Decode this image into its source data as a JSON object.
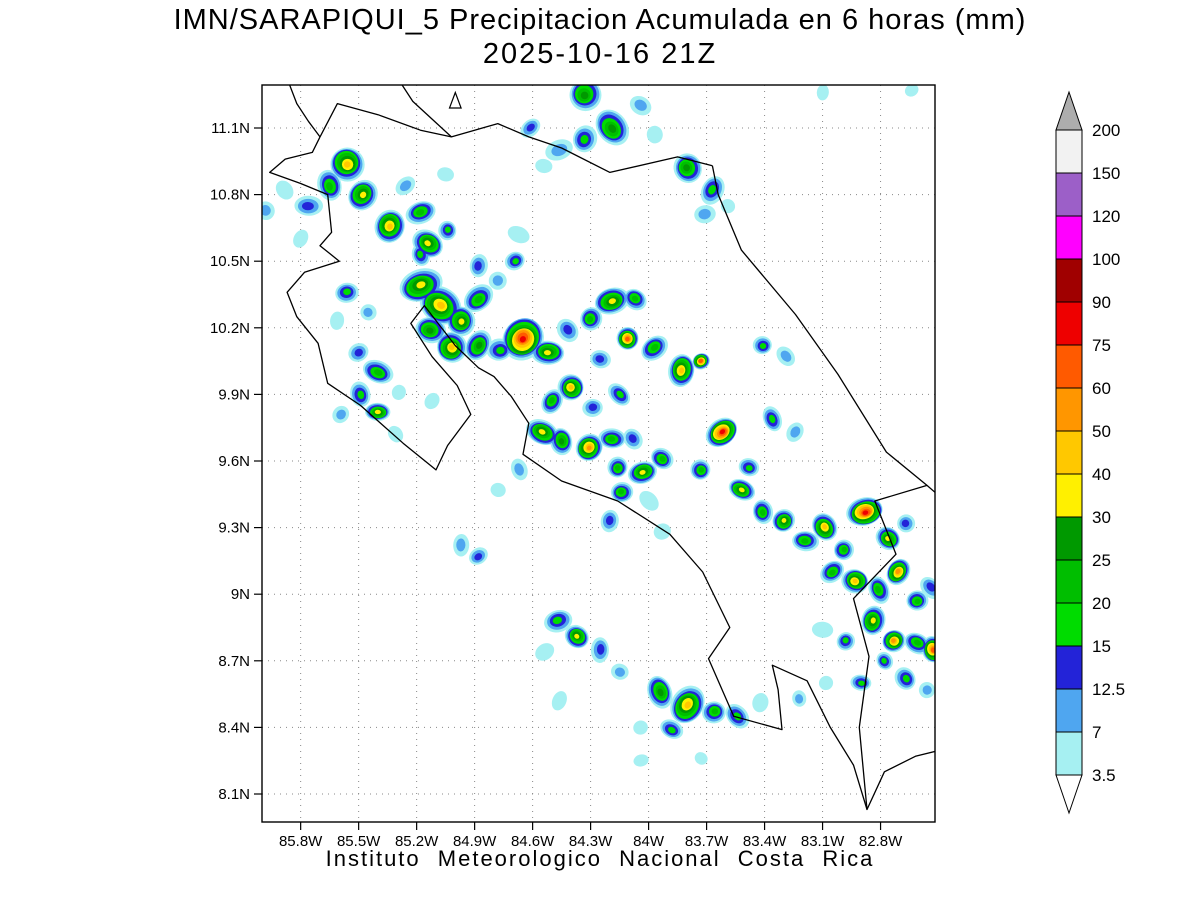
{
  "title": {
    "line1": "IMN/SARAPIQUI_5 Precipitacion Acumulada en 6 horas (mm)",
    "line2": "2025-10-16 21Z"
  },
  "caption": "Instituto Meteorologico Nacional Costa Rica",
  "axes": {
    "lat_ticks": [
      {
        "v": 11.1,
        "label": "11.1N"
      },
      {
        "v": 10.8,
        "label": "10.8N"
      },
      {
        "v": 10.5,
        "label": "10.5N"
      },
      {
        "v": 10.2,
        "label": "10.2N"
      },
      {
        "v": 9.9,
        "label": "9.9N"
      },
      {
        "v": 9.6,
        "label": "9.6N"
      },
      {
        "v": 9.3,
        "label": "9.3N"
      },
      {
        "v": 9.0,
        "label": "9N"
      },
      {
        "v": 8.7,
        "label": "8.7N"
      },
      {
        "v": 8.4,
        "label": "8.4N"
      },
      {
        "v": 8.1,
        "label": "8.1N"
      }
    ],
    "lon_ticks": [
      {
        "v": 85.8,
        "label": "85.8W"
      },
      {
        "v": 85.5,
        "label": "85.5W"
      },
      {
        "v": 85.2,
        "label": "85.2W"
      },
      {
        "v": 84.9,
        "label": "84.9W"
      },
      {
        "v": 84.6,
        "label": "84.6W"
      },
      {
        "v": 84.3,
        "label": "84.3W"
      },
      {
        "v": 84.0,
        "label": "84W"
      },
      {
        "v": 83.7,
        "label": "83.7W"
      },
      {
        "v": 83.4,
        "label": "83.4W"
      },
      {
        "v": 83.1,
        "label": "83.1W"
      },
      {
        "v": 82.8,
        "label": "82.8W"
      }
    ]
  },
  "colorbar": {
    "boundaries": [
      "3.5",
      "7",
      "12.5",
      "15",
      "20",
      "25",
      "30",
      "40",
      "50",
      "60",
      "75",
      "90",
      "100",
      "120",
      "150",
      "200"
    ],
    "boundary_values": [
      3.5,
      7,
      12.5,
      15,
      20,
      25,
      30,
      40,
      50,
      60,
      75,
      90,
      100,
      120,
      150,
      200
    ],
    "segment_colors": [
      "#A6F0F2",
      "#4FA6F0",
      "#2323D8",
      "#00DC00",
      "#00BE00",
      "#009900",
      "#FFF000",
      "#FFC800",
      "#FF9600",
      "#FF5A00",
      "#EE0000",
      "#A00000",
      "#FF00FF",
      "#9C5FC8",
      "#F2F2F2"
    ],
    "arrow_top_color": "#ADADAD",
    "arrow_bottom_color": "#FFFFFF"
  },
  "map": {
    "coastlines": [
      [
        [
          85.7,
          11.06
        ],
        [
          85.74,
          10.99
        ],
        [
          85.88,
          10.96
        ],
        [
          85.96,
          10.9
        ],
        [
          85.8,
          10.85
        ],
        [
          85.66,
          10.8
        ],
        [
          85.64,
          10.63
        ],
        [
          85.7,
          10.57
        ],
        [
          85.6,
          10.5
        ],
        [
          85.78,
          10.45
        ],
        [
          85.87,
          10.36
        ],
        [
          85.82,
          10.25
        ],
        [
          85.71,
          10.13
        ],
        [
          85.66,
          9.95
        ],
        [
          85.49,
          9.85
        ],
        [
          85.27,
          9.68
        ],
        [
          85.1,
          9.56
        ],
        [
          85.04,
          9.67
        ],
        [
          84.92,
          9.81
        ],
        [
          84.99,
          9.94
        ],
        [
          85.12,
          10.07
        ],
        [
          85.23,
          10.22
        ],
        [
          85.16,
          10.3
        ],
        [
          85.0,
          10.12
        ],
        [
          84.88,
          10.02
        ],
        [
          84.8,
          9.98
        ],
        [
          84.71,
          9.89
        ],
        [
          84.62,
          9.77
        ],
        [
          84.65,
          9.63
        ],
        [
          84.45,
          9.51
        ],
        [
          84.16,
          9.42
        ],
        [
          83.89,
          9.27
        ],
        [
          83.72,
          9.1
        ],
        [
          83.58,
          8.85
        ],
        [
          83.69,
          8.71
        ],
        [
          83.56,
          8.45
        ],
        [
          83.31,
          8.39
        ],
        [
          83.33,
          8.57
        ],
        [
          83.36,
          8.68
        ],
        [
          83.18,
          8.61
        ],
        [
          83.06,
          8.4
        ],
        [
          82.94,
          8.23
        ],
        [
          82.87,
          8.03
        ],
        [
          82.78,
          8.2
        ],
        [
          82.62,
          8.27
        ],
        [
          82.48,
          8.3
        ]
      ],
      [
        [
          82.87,
          8.03
        ],
        [
          82.91,
          8.4
        ],
        [
          82.86,
          8.72
        ],
        [
          82.94,
          8.98
        ],
        [
          82.72,
          9.18
        ],
        [
          82.83,
          9.42
        ],
        [
          82.56,
          9.49
        ]
      ],
      [
        [
          82.48,
          9.43
        ],
        [
          82.56,
          9.49
        ],
        [
          82.77,
          9.64
        ],
        [
          83.02,
          9.99
        ],
        [
          83.24,
          10.26
        ],
        [
          83.52,
          10.55
        ],
        [
          83.64,
          10.8
        ],
        [
          83.67,
          10.93
        ]
      ],
      [
        [
          85.7,
          11.06
        ],
        [
          85.64,
          11.16
        ],
        [
          85.61,
          11.21
        ],
        [
          85.4,
          11.16
        ],
        [
          85.18,
          11.09
        ],
        [
          85.02,
          11.06
        ],
        [
          84.9,
          11.09
        ],
        [
          84.78,
          11.12
        ],
        [
          84.62,
          11.06
        ],
        [
          84.45,
          11.01
        ],
        [
          84.2,
          10.9
        ],
        [
          83.85,
          10.97
        ],
        [
          83.67,
          10.93
        ]
      ],
      [
        [
          85.02,
          11.06
        ],
        [
          85.12,
          11.14
        ],
        [
          85.22,
          11.22
        ],
        [
          85.28,
          11.3
        ]
      ],
      [
        [
          85.7,
          11.06
        ],
        [
          85.76,
          11.13
        ],
        [
          85.82,
          11.21
        ],
        [
          85.86,
          11.3
        ]
      ]
    ],
    "island_triangle": [
      [
        85.03,
        11.19
      ],
      [
        84.97,
        11.19
      ],
      [
        85.0,
        11.26
      ]
    ]
  },
  "chart_data": {
    "type": "heatmap",
    "title": "IMN/SARAPIQUI_5 Precipitacion Acumulada en 6 horas (mm)",
    "subtitle": "2025-10-16 21Z",
    "units": "mm",
    "lon_range_w": [
      86.0,
      82.52
    ],
    "lat_range_n": [
      7.97,
      11.29
    ],
    "legend_levels_mm": [
      3.5,
      7,
      12.5,
      15,
      20,
      25,
      30,
      40,
      50,
      60,
      75,
      90,
      100,
      120,
      150,
      200
    ],
    "cell_fields": [
      "lon_w",
      "lat_n",
      "precip_mm",
      "radius_px"
    ],
    "cells": [
      [
        84.33,
        11.25,
        27,
        16
      ],
      [
        84.19,
        11.1,
        27,
        15
      ],
      [
        84.33,
        11.05,
        17,
        12
      ],
      [
        84.46,
        11.0,
        10,
        10
      ],
      [
        84.04,
        11.2,
        10,
        9
      ],
      [
        83.97,
        11.07,
        5,
        8
      ],
      [
        84.61,
        11.1,
        13.5,
        8
      ],
      [
        84.54,
        10.93,
        5,
        7
      ],
      [
        83.8,
        10.92,
        27,
        14
      ],
      [
        83.67,
        10.82,
        17,
        11
      ],
      [
        83.71,
        10.71,
        10,
        9
      ],
      [
        83.59,
        10.75,
        5,
        7
      ],
      [
        83.1,
        11.26,
        5,
        6
      ],
      [
        82.64,
        11.27,
        5,
        6
      ],
      [
        85.56,
        10.94,
        45,
        17
      ],
      [
        85.65,
        10.84,
        22,
        12
      ],
      [
        85.48,
        10.8,
        35,
        14
      ],
      [
        85.76,
        10.75,
        13.5,
        10
      ],
      [
        85.88,
        10.82,
        5,
        8
      ],
      [
        85.34,
        10.66,
        45,
        15
      ],
      [
        85.18,
        10.72,
        22,
        11
      ],
      [
        85.14,
        10.58,
        35,
        13
      ],
      [
        85.04,
        10.64,
        17,
        9
      ],
      [
        85.26,
        10.84,
        10,
        8
      ],
      [
        85.05,
        10.89,
        5,
        7
      ],
      [
        85.98,
        10.73,
        10,
        9
      ],
      [
        85.8,
        10.6,
        5,
        7
      ],
      [
        85.56,
        10.36,
        17,
        10
      ],
      [
        85.45,
        10.27,
        10,
        8
      ],
      [
        85.61,
        10.23,
        5,
        7
      ],
      [
        85.5,
        10.09,
        13.5,
        9
      ],
      [
        85.4,
        10.0,
        22,
        11
      ],
      [
        85.49,
        9.9,
        17,
        10
      ],
      [
        85.59,
        9.81,
        10,
        8
      ],
      [
        85.4,
        9.82,
        35,
        9
      ],
      [
        85.31,
        9.72,
        5,
        7
      ],
      [
        85.29,
        9.91,
        5,
        7
      ],
      [
        85.18,
        10.39,
        35,
        16
      ],
      [
        85.08,
        10.3,
        45,
        18
      ],
      [
        84.97,
        10.23,
        35,
        14
      ],
      [
        84.88,
        10.33,
        22,
        12
      ],
      [
        85.13,
        10.19,
        27,
        13
      ],
      [
        85.02,
        10.11,
        45,
        15
      ],
      [
        84.88,
        10.12,
        27,
        12
      ],
      [
        84.77,
        10.1,
        17,
        11
      ],
      [
        84.78,
        10.41,
        10,
        9
      ],
      [
        84.88,
        10.48,
        13.5,
        9
      ],
      [
        84.69,
        10.5,
        17,
        9
      ],
      [
        84.67,
        10.62,
        5,
        8
      ],
      [
        85.18,
        10.53,
        17,
        9
      ],
      [
        84.65,
        10.15,
        80,
        20
      ],
      [
        84.52,
        10.09,
        35,
        12
      ],
      [
        84.42,
        10.19,
        13.5,
        10
      ],
      [
        84.3,
        10.24,
        22,
        11
      ],
      [
        84.19,
        10.32,
        35,
        13
      ],
      [
        84.07,
        10.33,
        22,
        10
      ],
      [
        84.11,
        10.15,
        65,
        11
      ],
      [
        83.97,
        10.11,
        22,
        11
      ],
      [
        84.25,
        10.06,
        13.5,
        9
      ],
      [
        84.4,
        9.93,
        45,
        13
      ],
      [
        84.5,
        9.87,
        22,
        10
      ],
      [
        84.29,
        9.84,
        13.5,
        9
      ],
      [
        84.15,
        9.9,
        17,
        9
      ],
      [
        83.83,
        10.01,
        45,
        13
      ],
      [
        83.73,
        10.05,
        65,
        8
      ],
      [
        84.55,
        9.73,
        35,
        12
      ],
      [
        84.45,
        9.69,
        27,
        11
      ],
      [
        84.31,
        9.66,
        55,
        13
      ],
      [
        84.19,
        9.7,
        22,
        10
      ],
      [
        84.08,
        9.7,
        13.5,
        9
      ],
      [
        84.16,
        9.57,
        22,
        10
      ],
      [
        84.03,
        9.55,
        35,
        11
      ],
      [
        83.93,
        9.61,
        22,
        10
      ],
      [
        83.73,
        9.56,
        22,
        10
      ],
      [
        83.62,
        9.73,
        80,
        13
      ],
      [
        83.48,
        9.57,
        17,
        9
      ],
      [
        83.36,
        9.79,
        17,
        9
      ],
      [
        83.24,
        9.73,
        10,
        8
      ],
      [
        84.14,
        9.46,
        22,
        10
      ],
      [
        84.0,
        9.42,
        5,
        8
      ],
      [
        84.2,
        9.33,
        13.5,
        9
      ],
      [
        83.93,
        9.28,
        5,
        8
      ],
      [
        83.52,
        9.47,
        35,
        10
      ],
      [
        83.41,
        9.37,
        22,
        10
      ],
      [
        83.3,
        9.33,
        35,
        11
      ],
      [
        83.19,
        9.24,
        22,
        10
      ],
      [
        83.09,
        9.3,
        45,
        12
      ],
      [
        82.99,
        9.2,
        22,
        10
      ],
      [
        82.88,
        9.37,
        80,
        14
      ],
      [
        82.76,
        9.25,
        35,
        11
      ],
      [
        82.67,
        9.32,
        13.5,
        9
      ],
      [
        83.05,
        9.1,
        22,
        10
      ],
      [
        82.93,
        9.06,
        45,
        12
      ],
      [
        82.81,
        9.02,
        22,
        10
      ],
      [
        82.71,
        9.1,
        55,
        11
      ],
      [
        82.61,
        8.97,
        22,
        10
      ],
      [
        82.54,
        9.03,
        13.5,
        9
      ],
      [
        82.84,
        8.88,
        35,
        12
      ],
      [
        82.73,
        8.79,
        55,
        11
      ],
      [
        82.61,
        8.78,
        22,
        10
      ],
      [
        82.53,
        8.75,
        65,
        11
      ],
      [
        82.98,
        8.79,
        17,
        9
      ],
      [
        83.1,
        8.84,
        5,
        8
      ],
      [
        82.67,
        8.62,
        17,
        10
      ],
      [
        82.56,
        8.57,
        10,
        8
      ],
      [
        84.47,
        8.88,
        17,
        11
      ],
      [
        84.37,
        8.81,
        35,
        11
      ],
      [
        84.25,
        8.75,
        13.5,
        9
      ],
      [
        84.54,
        8.74,
        5,
        8
      ],
      [
        84.15,
        8.65,
        10,
        8
      ],
      [
        83.94,
        8.56,
        27,
        12
      ],
      [
        83.8,
        8.5,
        45,
        16
      ],
      [
        83.66,
        8.47,
        22,
        11
      ],
      [
        83.54,
        8.45,
        17,
        10
      ],
      [
        83.42,
        8.51,
        5,
        8
      ],
      [
        84.04,
        8.4,
        5,
        7
      ],
      [
        83.88,
        8.39,
        17,
        9
      ],
      [
        83.22,
        8.53,
        10,
        7
      ],
      [
        83.08,
        8.6,
        5,
        7
      ],
      [
        82.9,
        8.6,
        17,
        8
      ],
      [
        82.78,
        8.7,
        17,
        8
      ],
      [
        84.46,
        8.52,
        5,
        7
      ],
      [
        84.04,
        8.25,
        5,
        6
      ],
      [
        83.73,
        8.26,
        5,
        6
      ],
      [
        84.97,
        9.22,
        10,
        8
      ],
      [
        84.88,
        9.17,
        13.5,
        8
      ],
      [
        84.78,
        9.47,
        5,
        7
      ],
      [
        84.67,
        9.56,
        10,
        8
      ],
      [
        85.12,
        9.87,
        5,
        7
      ],
      [
        83.41,
        10.12,
        17,
        9
      ],
      [
        83.29,
        10.07,
        10,
        8
      ]
    ]
  }
}
